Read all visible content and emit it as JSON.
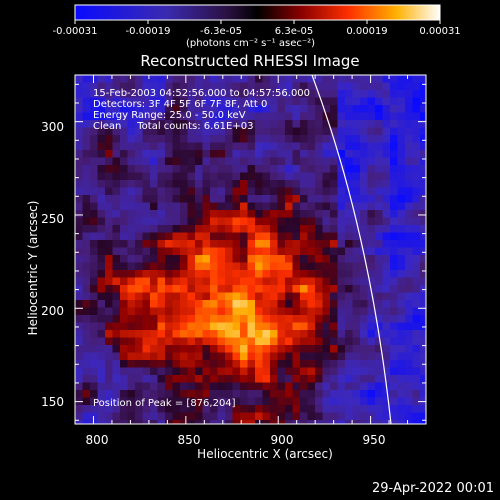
{
  "chart_data": {
    "type": "heatmap",
    "title": "Reconstructed RHESSI Image",
    "colorbar": {
      "ticks": [
        "-0.00031",
        "-0.00019",
        "-6.3e-05",
        "6.3e-05",
        "0.00019",
        "0.00031"
      ],
      "range": [
        -0.00031,
        0.00031
      ],
      "units_label": "(photons cm⁻² s⁻¹ asec⁻²)",
      "colormap": "blue-purple-red-orange-yellow-white"
    },
    "xlabel": "Heliocentric X (arcsec)",
    "ylabel": "Heliocentric Y (arcsec)",
    "xlim": [
      790,
      980
    ],
    "ylim": [
      138,
      325
    ],
    "xticks": [
      "800",
      "850",
      "900",
      "950"
    ],
    "yticks": [
      "150",
      "200",
      "250",
      "300"
    ],
    "annotations": [
      "15-Feb-2003 04:52:56.000 to 04:57:56.000",
      "Detectors: 3F 4F 5F 6F 7F 8F, Att 0",
      "Energy Range: 25.0 - 50.0 keV",
      "Clean     Total counts: 6.61E+03"
    ],
    "peak_label": "Position of Peak = [876,204]",
    "peak": [
      876,
      204
    ],
    "limb_circle": {
      "visible": true,
      "color": "#ffffff"
    },
    "grid": false
  },
  "footer": {
    "date": "29-Apr-2022 00:01"
  },
  "colors": {
    "background": "#000000",
    "text": "#ffffff",
    "limb": "#ffffff"
  }
}
